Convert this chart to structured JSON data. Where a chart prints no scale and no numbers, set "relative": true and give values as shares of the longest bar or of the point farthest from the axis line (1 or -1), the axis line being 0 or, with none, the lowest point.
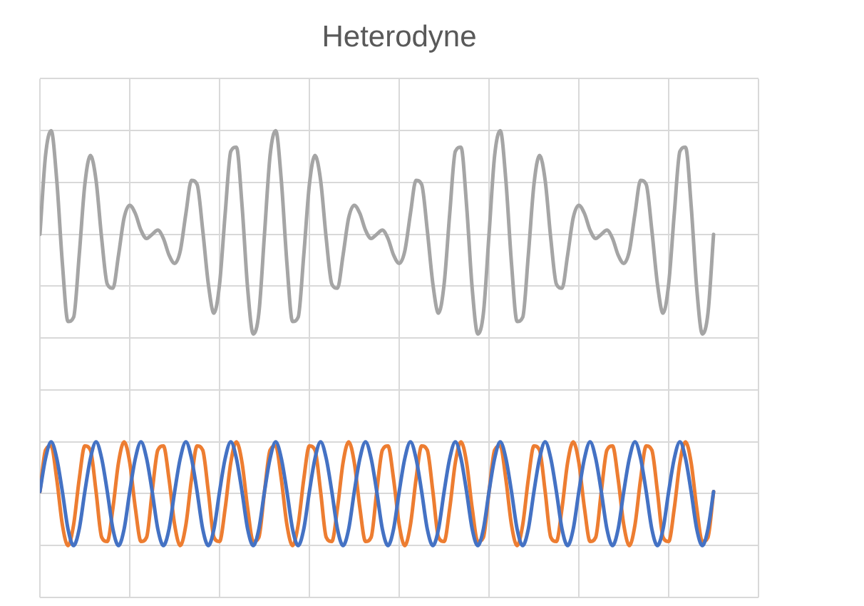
{
  "chart_data": {
    "type": "line",
    "title": "Heterodyne",
    "relative": true,
    "grid": true,
    "legend": false,
    "tick_labels": false,
    "categories": [
      null,
      null,
      null,
      null,
      null,
      null,
      null,
      null,
      null,
      null,
      null,
      null,
      null,
      null,
      null,
      null,
      null,
      null,
      null,
      null,
      null,
      null,
      null,
      null,
      null,
      null,
      null,
      null,
      null,
      null,
      null,
      null,
      null,
      null,
      null,
      null,
      null,
      null,
      null,
      null,
      null,
      null,
      null,
      null,
      null,
      null,
      null,
      null,
      null,
      null,
      null,
      null,
      null,
      null,
      null,
      null,
      null,
      null,
      null,
      null,
      null,
      null,
      null,
      null,
      null,
      null,
      null,
      null,
      null,
      null,
      null,
      null,
      null,
      null,
      null,
      null,
      null,
      null,
      null,
      null,
      null,
      null,
      null,
      null,
      null,
      null,
      null,
      null,
      null,
      null,
      null,
      null,
      null,
      null,
      null,
      null,
      null,
      null,
      null,
      null,
      null,
      null,
      null,
      null,
      null,
      null,
      null,
      null,
      null,
      null,
      null,
      null,
      null,
      null,
      null,
      null,
      null,
      null,
      null,
      null,
      null
    ],
    "series": [
      {
        "color": "#a5a5a5",
        "values": [
          0.75,
          0.94,
          1,
          0.88,
          0.68,
          0.54,
          0.55,
          0.7,
          0.87,
          0.94,
          0.88,
          0.74,
          0.63,
          0.62,
          0.7,
          0.79,
          0.82,
          0.8,
          0.76,
          0.74,
          0.75,
          0.76,
          0.74,
          0.7,
          0.68,
          0.71,
          0.8,
          0.88,
          0.87,
          0.76,
          0.63,
          0.56,
          0.63,
          0.8,
          0.95,
          0.96,
          0.82,
          0.62,
          0.51,
          0.56,
          0.75,
          0.94,
          1,
          0.88,
          0.68,
          0.54,
          0.55,
          0.7,
          0.87,
          0.94,
          0.88,
          0.74,
          0.63,
          0.62,
          0.7,
          0.79,
          0.82,
          0.8,
          0.76,
          0.74,
          0.75,
          0.76,
          0.74,
          0.7,
          0.68,
          0.71,
          0.8,
          0.88,
          0.87,
          0.76,
          0.63,
          0.56,
          0.63,
          0.8,
          0.95,
          0.96,
          0.82,
          0.62,
          0.51,
          0.56,
          0.75,
          0.94,
          1,
          0.88,
          0.68,
          0.54,
          0.55,
          0.7,
          0.87,
          0.94,
          0.88,
          0.74,
          0.63,
          0.62,
          0.7,
          0.79,
          0.82,
          0.8,
          0.76,
          0.74,
          0.75,
          0.76,
          0.74,
          0.7,
          0.68,
          0.71,
          0.8,
          0.88,
          0.87,
          0.76,
          0.63,
          0.56,
          0.63,
          0.8,
          0.95,
          0.96,
          0.82,
          0.62,
          0.51,
          0.56,
          0.75
        ]
      },
      {
        "color": "#4472c4",
        "values": [
          0.13,
          0.21,
          0.25,
          0.21,
          0.13,
          0.04,
          0,
          0.04,
          0.13,
          0.21,
          0.25,
          0.21,
          0.13,
          0.04,
          0,
          0.04,
          0.13,
          0.21,
          0.25,
          0.21,
          0.13,
          0.04,
          0,
          0.04,
          0.13,
          0.21,
          0.25,
          0.21,
          0.13,
          0.04,
          0,
          0.04,
          0.13,
          0.21,
          0.25,
          0.21,
          0.13,
          0.04,
          0,
          0.04,
          0.13,
          0.21,
          0.25,
          0.21,
          0.13,
          0.04,
          0,
          0.04,
          0.13,
          0.21,
          0.25,
          0.21,
          0.13,
          0.04,
          0,
          0.04,
          0.13,
          0.21,
          0.25,
          0.21,
          0.13,
          0.04,
          0,
          0.04,
          0.13,
          0.21,
          0.25,
          0.21,
          0.13,
          0.04,
          0,
          0.04,
          0.13,
          0.21,
          0.25,
          0.21,
          0.13,
          0.04,
          0,
          0.04,
          0.13,
          0.21,
          0.25,
          0.21,
          0.13,
          0.04,
          0,
          0.04,
          0.13,
          0.21,
          0.25,
          0.21,
          0.13,
          0.04,
          0,
          0.04,
          0.13,
          0.21,
          0.25,
          0.21,
          0.13,
          0.04,
          0,
          0.04,
          0.13,
          0.21,
          0.25,
          0.21,
          0.13,
          0.04,
          0,
          0.04,
          0.13,
          0.21,
          0.25,
          0.21,
          0.13,
          0.04,
          0,
          0.04,
          0.13
        ]
      },
      {
        "color": "#ed7d31",
        "values": [
          0.13,
          0.23,
          0.24,
          0.16,
          0.05,
          0,
          0.05,
          0.16,
          0.24,
          0.23,
          0.13,
          0.02,
          0.01,
          0.09,
          0.2,
          0.25,
          0.2,
          0.09,
          0.01,
          0.02,
          0.13,
          0.23,
          0.24,
          0.16,
          0.05,
          0,
          0.05,
          0.16,
          0.24,
          0.23,
          0.13,
          0.02,
          0.01,
          0.09,
          0.2,
          0.25,
          0.2,
          0.09,
          0.01,
          0.02,
          0.13,
          0.23,
          0.24,
          0.16,
          0.05,
          0,
          0.05,
          0.16,
          0.24,
          0.23,
          0.13,
          0.02,
          0.01,
          0.09,
          0.2,
          0.25,
          0.2,
          0.09,
          0.01,
          0.02,
          0.13,
          0.23,
          0.24,
          0.16,
          0.05,
          0,
          0.05,
          0.16,
          0.24,
          0.23,
          0.13,
          0.02,
          0.01,
          0.09,
          0.2,
          0.25,
          0.2,
          0.09,
          0.01,
          0.02,
          0.13,
          0.23,
          0.24,
          0.16,
          0.05,
          0,
          0.05,
          0.16,
          0.24,
          0.23,
          0.13,
          0.02,
          0.01,
          0.09,
          0.2,
          0.25,
          0.2,
          0.09,
          0.01,
          0.02,
          0.13,
          0.23,
          0.24,
          0.16,
          0.05,
          0,
          0.05,
          0.16,
          0.24,
          0.23,
          0.13,
          0.02,
          0.01,
          0.09,
          0.2,
          0.25,
          0.2,
          0.09,
          0.01,
          0.02,
          0.13
        ]
      }
    ]
  }
}
